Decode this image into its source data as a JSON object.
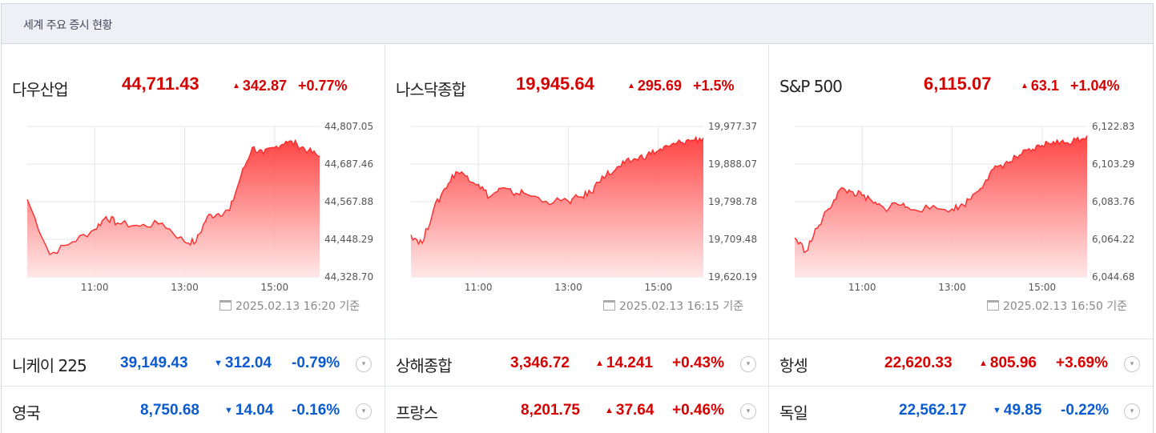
{
  "header": {
    "title": "세계 주요 증시 현황"
  },
  "panels": [
    {
      "name": "다우산업",
      "value": "44,711.43",
      "change": "342.87",
      "pct": "+0.77%",
      "direction": "up",
      "yticks": [
        "44,807.05",
        "44,687.46",
        "44,567.88",
        "44,448.29",
        "44,328.70"
      ],
      "xticks": [
        "11:00",
        "13:00",
        "15:00"
      ],
      "timestamp": "2025.02.13 16:20 기준",
      "chart_data": {
        "type": "area",
        "ylim": [
          44328.7,
          44807.05
        ],
        "x_hours": [
          9.5,
          10.0,
          10.5,
          11.0,
          11.25,
          11.5,
          12.0,
          12.5,
          13.0,
          13.25,
          13.5,
          13.75,
          14.0,
          14.25,
          14.5,
          14.75,
          15.0,
          15.25,
          15.5,
          15.75,
          16.0
        ],
        "values": [
          44575,
          44400,
          44440,
          44480,
          44520,
          44500,
          44490,
          44500,
          44440,
          44440,
          44520,
          44530,
          44540,
          44650,
          44740,
          44720,
          44740,
          44760,
          44750,
          44730,
          44711
        ]
      }
    },
    {
      "name": "나스닥종합",
      "value": "19,945.64",
      "change": "295.69",
      "pct": "+1.5%",
      "direction": "up",
      "yticks": [
        "19,977.37",
        "19,888.07",
        "19,798.78",
        "19,709.48",
        "19,620.19"
      ],
      "xticks": [
        "11:00",
        "13:00",
        "15:00"
      ],
      "timestamp": "2025.02.13 16:15 기준",
      "chart_data": {
        "type": "area",
        "ylim": [
          19620.19,
          19977.37
        ],
        "x_hours": [
          9.5,
          9.75,
          10.0,
          10.25,
          10.5,
          10.75,
          11.0,
          11.25,
          11.5,
          11.75,
          12.0,
          12.5,
          13.0,
          13.25,
          13.5,
          13.75,
          14.0,
          14.25,
          14.5,
          14.75,
          15.0,
          15.25,
          15.5,
          15.75,
          16.0
        ],
        "values": [
          19720,
          19700,
          19780,
          19830,
          19870,
          19860,
          19840,
          19810,
          19830,
          19820,
          19820,
          19800,
          19800,
          19810,
          19820,
          19860,
          19870,
          19890,
          19900,
          19910,
          19920,
          19930,
          19940,
          19945,
          19950
        ]
      }
    },
    {
      "name": "S&P 500",
      "value": "6,115.07",
      "change": "63.1",
      "pct": "+1.04%",
      "direction": "up",
      "yticks": [
        "6,122.83",
        "6,103.29",
        "6,083.76",
        "6,064.22",
        "6,044.68"
      ],
      "xticks": [
        "11:00",
        "13:00",
        "15:00"
      ],
      "timestamp": "2025.02.13 16:50 기준",
      "chart_data": {
        "type": "area",
        "ylim": [
          6044.68,
          6122.83
        ],
        "x_hours": [
          9.5,
          9.75,
          10.0,
          10.25,
          10.5,
          10.75,
          11.0,
          11.25,
          11.5,
          11.75,
          12.0,
          12.5,
          13.0,
          13.25,
          13.5,
          13.75,
          14.0,
          14.25,
          14.5,
          14.75,
          15.0,
          15.25,
          15.5,
          15.75,
          16.0
        ],
        "values": [
          6065,
          6058,
          6070,
          6080,
          6090,
          6089,
          6087,
          6083,
          6080,
          6083,
          6081,
          6080,
          6080,
          6082,
          6088,
          6095,
          6102,
          6104,
          6108,
          6110,
          6113,
          6115,
          6114,
          6116,
          6118
        ]
      }
    }
  ],
  "rows": [
    [
      {
        "name": "니케이 225",
        "value": "39,149.43",
        "change": "312.04",
        "pct": "-0.79%",
        "direction": "down"
      },
      {
        "name": "상해종합",
        "value": "3,346.72",
        "change": "14.241",
        "pct": "+0.43%",
        "direction": "up"
      },
      {
        "name": "항셍",
        "value": "22,620.33",
        "change": "805.96",
        "pct": "+3.69%",
        "direction": "up"
      }
    ],
    [
      {
        "name": "영국",
        "value": "8,750.68",
        "change": "14.04",
        "pct": "-0.16%",
        "direction": "down"
      },
      {
        "name": "프랑스",
        "value": "8,201.75",
        "change": "37.64",
        "pct": "+0.46%",
        "direction": "up"
      },
      {
        "name": "독일",
        "value": "22,562.17",
        "change": "49.85",
        "pct": "-0.22%",
        "direction": "down"
      }
    ]
  ],
  "colors": {
    "up": "#d60000",
    "down": "#0a5bd1",
    "line": "#ff2b2b",
    "header_bg": "#eef0f6"
  },
  "icons": {
    "up": "triangle-up",
    "down": "triangle-down",
    "calendar": "calendar-icon",
    "expand": "chevron-down-circle-icon"
  }
}
